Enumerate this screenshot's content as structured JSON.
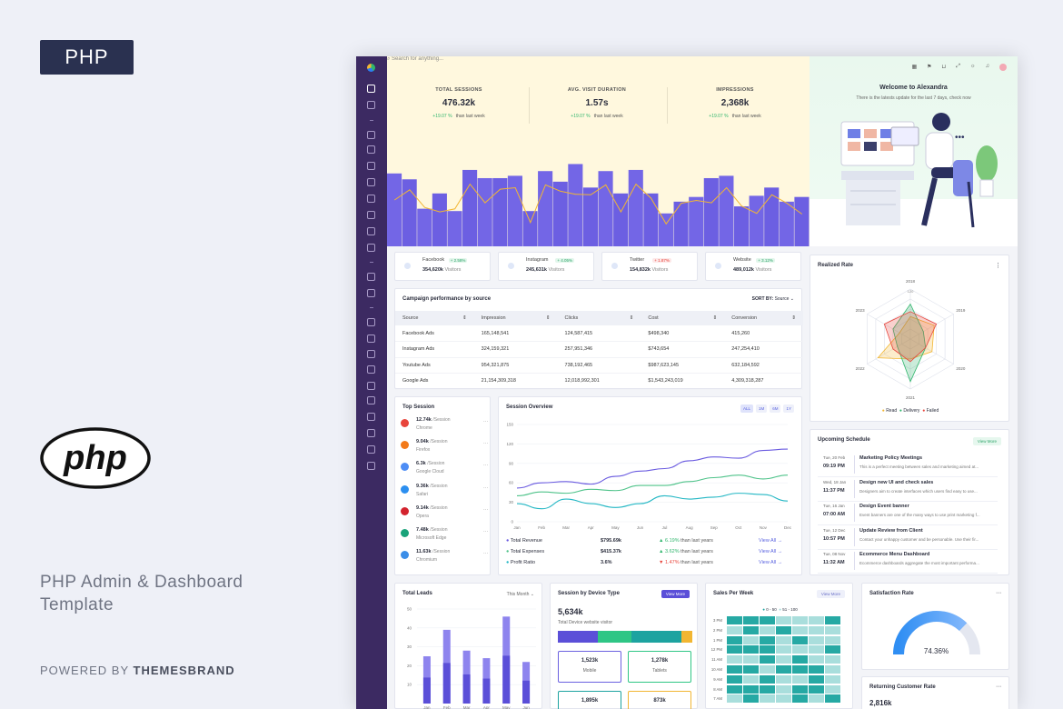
{
  "promo": {
    "badge": "PHP",
    "logo_text": "php",
    "tagline": "PHP Admin & Dashboard Template",
    "powered_prefix": "POWERED BY",
    "powered_brand": "THEMESBRAND"
  },
  "search": {
    "placeholder": "Search for anything..."
  },
  "stats": [
    {
      "label": "TOTAL SESSIONS",
      "value": "476.32k",
      "change": "+19.07 %",
      "note": "than last week"
    },
    {
      "label": "AVG. VISIT DURATION",
      "value": "1.57s",
      "change": "+19.07 %",
      "note": "than last week"
    },
    {
      "label": "IMPRESSIONS",
      "value": "2,368k",
      "change": "+19.07 %",
      "note": "than last week"
    }
  ],
  "hero_bars": [
    62,
    57,
    32,
    45,
    30,
    65,
    58,
    58,
    60,
    30,
    64,
    55,
    70,
    50,
    64,
    45,
    65,
    45,
    28,
    38,
    42,
    58,
    60,
    34,
    43,
    50,
    38,
    42
  ],
  "welcome": {
    "title": "Welcome to Alexandra",
    "subtitle": "There is the latests update for the last 7 days, check now"
  },
  "social": [
    {
      "name": "Facebook",
      "pct": "+ 2.58%",
      "value": "354,620k",
      "unit": "Visitors",
      "icon": "facebook-icon",
      "up": true
    },
    {
      "name": "Instagram",
      "pct": "+ 4.05%",
      "value": "245,631k",
      "unit": "Visitors",
      "icon": "instagram-icon",
      "up": true
    },
    {
      "name": "Twitter",
      "pct": "+ 1.87%",
      "value": "154,832k",
      "unit": "Visitors",
      "icon": "twitter-icon",
      "up": false
    },
    {
      "name": "Website",
      "pct": "+ 3.12%",
      "value": "489,012k",
      "unit": "Visitors",
      "icon": "globe-icon",
      "up": true
    }
  ],
  "campaign": {
    "title": "Campaign performance by source",
    "sort_label": "SORT BY:",
    "sort_value": "Source",
    "columns": [
      "Source",
      "Impression",
      "Clicks",
      "Cost",
      "Conversion"
    ],
    "rows": [
      [
        "Facebook Ads",
        "165,148,541",
        "124,587,415",
        "$498,340",
        "415,260"
      ],
      [
        "Instagram Ads",
        "324,159,321",
        "257,951,346",
        "$743,654",
        "247,254,410"
      ],
      [
        "Youtube Ads",
        "954,321,875",
        "738,192,465",
        "$987,623,145",
        "632,184,592"
      ],
      [
        "Google Ads",
        "21,154,309,318",
        "12,018,992,301",
        "$1,543,243,019",
        "4,309,318,287"
      ]
    ]
  },
  "realized": {
    "title": "Realized Rate",
    "years": [
      "2018",
      "2019",
      "2020",
      "2021",
      "2022",
      "2023"
    ],
    "scale": "120",
    "legend": [
      "Read",
      "Delivery",
      "Failed"
    ]
  },
  "top_session": {
    "title": "Top Session",
    "unit": "/Session",
    "items": [
      {
        "value": "12.74k",
        "name": "Chrome",
        "color": "#e8453c"
      },
      {
        "value": "9.04k",
        "name": "Firefox",
        "color": "#f27a1a"
      },
      {
        "value": "6.3k",
        "name": "Google Cloud",
        "color": "#4d8df5"
      },
      {
        "value": "9.36k",
        "name": "Safari",
        "color": "#2c8ff0"
      },
      {
        "value": "9.14k",
        "name": "Opera",
        "color": "#d3232e"
      },
      {
        "value": "7.48k",
        "name": "Microsoft Edge",
        "color": "#1aa37a"
      },
      {
        "value": "11.63k",
        "name": "Chromium",
        "color": "#3b8ee8"
      }
    ]
  },
  "session_overview": {
    "title": "Session Overview",
    "ranges": [
      "ALL",
      "1M",
      "6M",
      "1Y"
    ],
    "y_ticks": [
      "150",
      "120",
      "90",
      "60",
      "30",
      "0"
    ],
    "months": [
      "Jan",
      "Feb",
      "Mar",
      "Apr",
      "May",
      "Jun",
      "Jul",
      "Aug",
      "Sep",
      "Oct",
      "Nov",
      "Dec"
    ],
    "series": [
      {
        "name": "Total Revenue",
        "values": [
          52,
          60,
          62,
          58,
          70,
          78,
          82,
          94,
          100,
          98,
          110,
          112
        ],
        "color": "#6a5be0"
      },
      {
        "name": "Total Expenses",
        "values": [
          40,
          46,
          44,
          50,
          48,
          56,
          56,
          62,
          68,
          72,
          66,
          72
        ],
        "color": "#4fc38a"
      },
      {
        "name": "Profit Ratio",
        "values": [
          28,
          20,
          35,
          28,
          22,
          28,
          40,
          35,
          38,
          44,
          42,
          32
        ],
        "color": "#23b7c4"
      }
    ],
    "summary": [
      {
        "name": "Total Revenue",
        "value": "$795.69k",
        "change": "6.19%",
        "note": "than last years",
        "link": "View All",
        "up": true
      },
      {
        "name": "Total Expenses",
        "value": "$415.37k",
        "change": "3.62%",
        "note": "than last years",
        "link": "View All",
        "up": true
      },
      {
        "name": "Profit Ratio",
        "value": "3.6%",
        "change": "1.47%",
        "note": "than last years",
        "link": "View All",
        "up": false
      }
    ]
  },
  "schedule": {
    "title": "Upcoming Schedule",
    "btn": "View More",
    "items": [
      {
        "date": "Tue, 20 Feb",
        "time": "09:19 PM",
        "title": "Marketing Policy Meetings",
        "desc": "This is a perfect meeting between sales and marketing aimed at..."
      },
      {
        "date": "Wed, 18 Jan",
        "time": "11:37 PM",
        "title": "Design new UI and check sales",
        "desc": "Designers aim to create interfaces which users find easy to use..."
      },
      {
        "date": "Tue, 16 Jan",
        "time": "07:00 AM",
        "title": "Design Event banner",
        "desc": "Event banners are one of the many ways to use print marketing f..."
      },
      {
        "date": "Tue, 12 Dec",
        "time": "10:57 PM",
        "title": "Update Review from Client",
        "desc": "Contact your unhappy customer and be personable. Use their fir..."
      },
      {
        "date": "Tue, 08 Nov",
        "time": "11:32 AM",
        "title": "Ecommerce Menu Dashboard",
        "desc": "Ecommerce dashboards aggregate the most important performa..."
      }
    ]
  },
  "leads": {
    "title": "Total Leads",
    "filter": "This Month",
    "y_ticks": [
      "50",
      "40",
      "30",
      "20",
      "10"
    ],
    "bars": [
      25,
      39,
      28,
      24,
      46,
      22
    ],
    "months": [
      "Jan",
      "Feb",
      "Mar",
      "Apr",
      "May",
      "Jun"
    ]
  },
  "device": {
    "title": "Session by Device Type",
    "btn": "View More",
    "value": "5,634k",
    "label": "Total Device website visitor",
    "boxes": [
      {
        "value": "1,523k",
        "name": "Mobile"
      },
      {
        "value": "1,278k",
        "name": "Tablets"
      },
      {
        "value": "1,895k",
        "name": ""
      },
      {
        "value": "873k",
        "name": ""
      }
    ]
  },
  "sales_week": {
    "title": "Sales Per Week",
    "btn": "View More",
    "legend": [
      "0 - 50",
      "51 - 100"
    ],
    "rows": [
      "3 PM",
      "2 PM",
      "1 PM",
      "12 PM",
      "11 AM",
      "10 AM",
      "9 AM",
      "8 AM",
      "7 AM"
    ]
  },
  "satisfaction": {
    "title": "Satisfaction Rate",
    "value": "74.36%",
    "fraction": 0.7436
  },
  "returning": {
    "title": "Returning Customer Rate",
    "value": "2,816k"
  }
}
